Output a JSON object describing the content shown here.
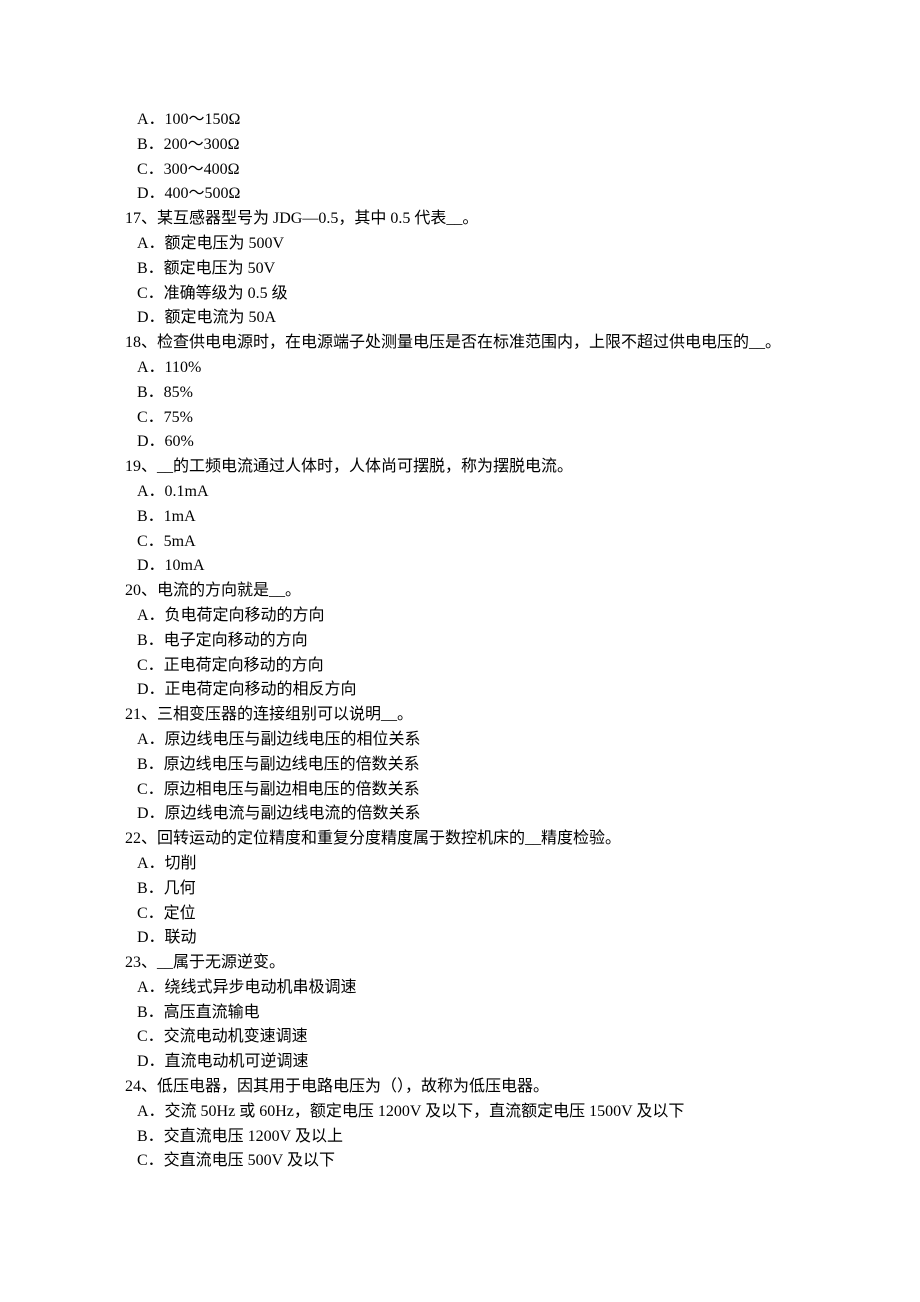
{
  "orphan_options": [
    "A．100～150Ω",
    "B．200～300Ω",
    "C．300～400Ω",
    "D．400～500Ω"
  ],
  "questions": [
    {
      "stem": "17、某互感器型号为 JDG—0.5，其中 0.5 代表__。",
      "options": [
        "A．额定电压为 500V",
        "B．额定电压为 50V",
        "C．准确等级为 0.5 级",
        "D．额定电流为 50A"
      ]
    },
    {
      "stem": "18、检查供电电源时，在电源端子处测量电压是否在标准范围内，上限不超过供电电压的__。",
      "options": [
        "A．110%",
        "B．85%",
        "C．75%",
        "D．60%"
      ]
    },
    {
      "stem": "19、__的工频电流通过人体时，人体尚可摆脱，称为摆脱电流。",
      "options": [
        "A．0.1mA",
        "B．1mA",
        "C．5mA",
        "D．10mA"
      ]
    },
    {
      "stem": "20、电流的方向就是__。",
      "options": [
        "A．负电荷定向移动的方向",
        "B．电子定向移动的方向",
        "C．正电荷定向移动的方向",
        "D．正电荷定向移动的相反方向"
      ]
    },
    {
      "stem": "21、三相变压器的连接组别可以说明__。",
      "options": [
        "A．原边线电压与副边线电压的相位关系",
        "B．原边线电压与副边线电压的倍数关系",
        "C．原边相电压与副边相电压的倍数关系",
        "D．原边线电流与副边线电流的倍数关系"
      ]
    },
    {
      "stem": "22、回转运动的定位精度和重复分度精度属于数控机床的__精度检验。",
      "options": [
        "A．切削",
        "B．几何",
        "C．定位",
        "D．联动"
      ]
    },
    {
      "stem": "23、__属于无源逆变。",
      "options": [
        "A．绕线式异步电动机串极调速",
        "B．高压直流输电",
        "C．交流电动机变速调速",
        "D．直流电动机可逆调速"
      ]
    },
    {
      "stem": "24、低压电器，因其用于电路电压为（），故称为低压电器。",
      "options": [
        "A．交流 50Hz 或 60Hz，额定电压 1200V 及以下，直流额定电压 1500V 及以下",
        "B．交直流电压 1200V 及以上",
        "C．交直流电压 500V 及以下"
      ]
    }
  ]
}
